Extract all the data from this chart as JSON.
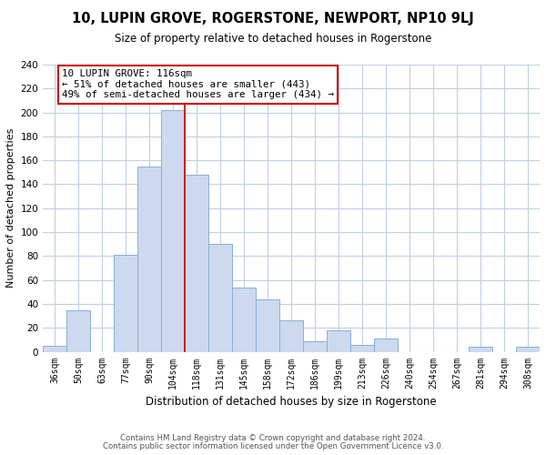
{
  "title": "10, LUPIN GROVE, ROGERSTONE, NEWPORT, NP10 9LJ",
  "subtitle": "Size of property relative to detached houses in Rogerstone",
  "xlabel": "Distribution of detached houses by size in Rogerstone",
  "ylabel": "Number of detached properties",
  "bar_color": "#ccd9ee",
  "bar_edge_color": "#8aafd4",
  "categories": [
    "36sqm",
    "50sqm",
    "63sqm",
    "77sqm",
    "90sqm",
    "104sqm",
    "118sqm",
    "131sqm",
    "145sqm",
    "158sqm",
    "172sqm",
    "186sqm",
    "199sqm",
    "213sqm",
    "226sqm",
    "240sqm",
    "254sqm",
    "267sqm",
    "281sqm",
    "294sqm",
    "308sqm"
  ],
  "values": [
    5,
    35,
    0,
    81,
    155,
    202,
    148,
    90,
    54,
    44,
    26,
    9,
    18,
    6,
    11,
    0,
    0,
    0,
    4,
    0,
    4
  ],
  "vline_index": 6,
  "annotation_line1": "10 LUPIN GROVE: 116sqm",
  "annotation_line2": "← 51% of detached houses are smaller (443)",
  "annotation_line3": "49% of semi-detached houses are larger (434) →",
  "ylim": [
    0,
    240
  ],
  "yticks": [
    0,
    20,
    40,
    60,
    80,
    100,
    120,
    140,
    160,
    180,
    200,
    220,
    240
  ],
  "annotation_box_color": "#ffffff",
  "annotation_box_edge": "#cc0000",
  "vline_color": "#cc0000",
  "footer_line1": "Contains HM Land Registry data © Crown copyright and database right 2024.",
  "footer_line2": "Contains public sector information licensed under the Open Government Licence v3.0.",
  "background_color": "#ffffff",
  "grid_color": "#c0cfe4"
}
